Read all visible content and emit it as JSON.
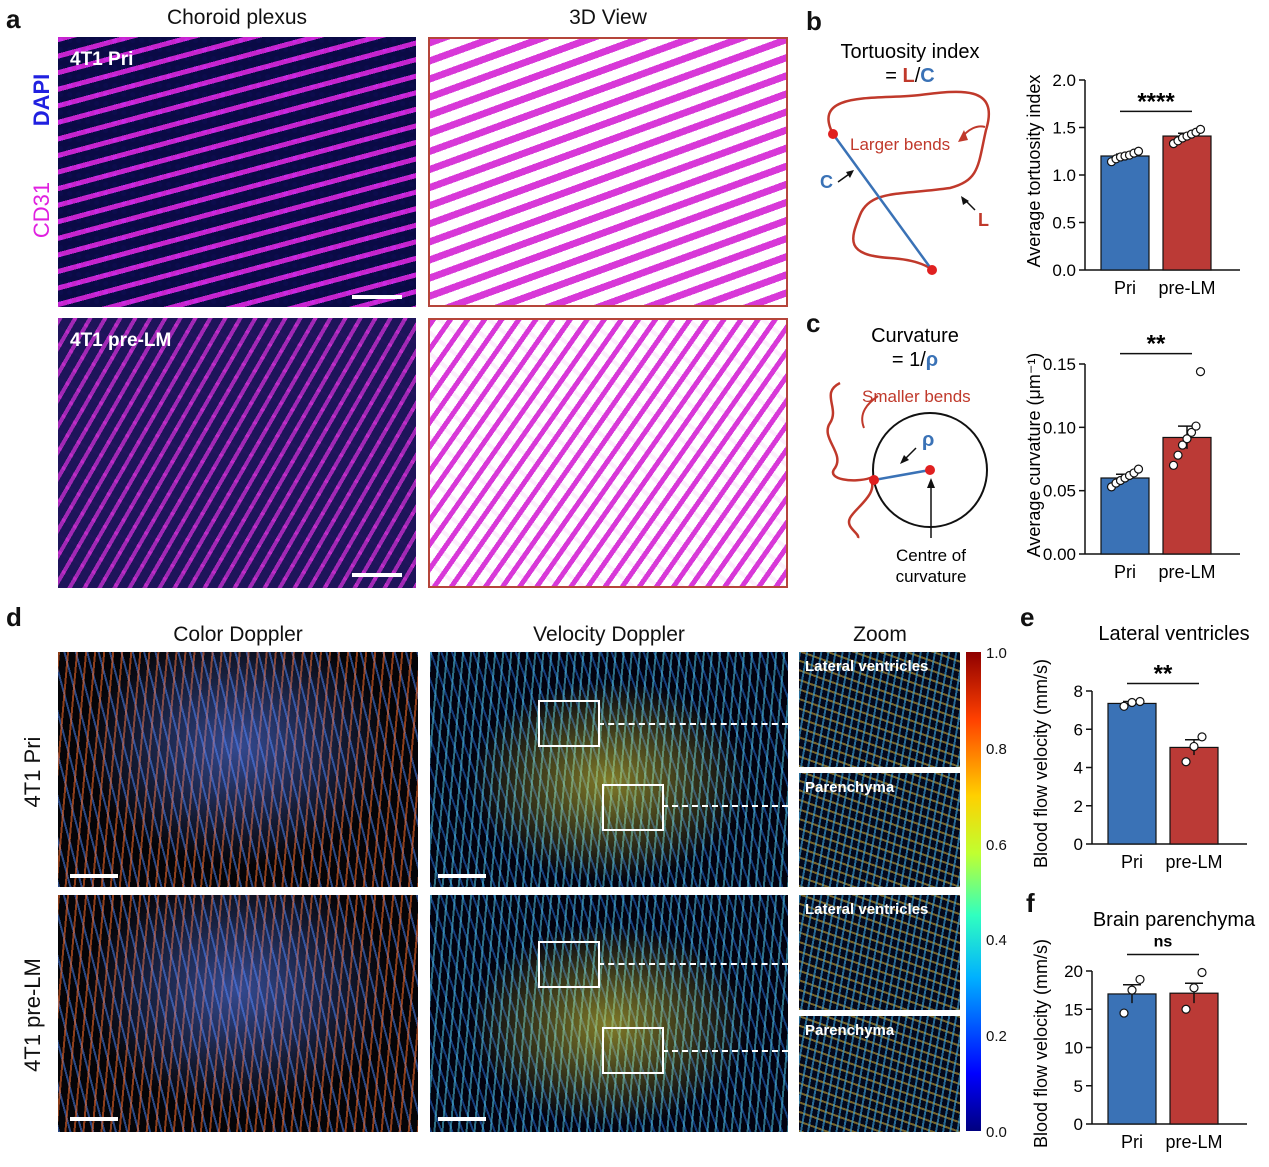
{
  "panels": {
    "a": {
      "letter": "a",
      "col_titles": [
        "Choroid plexus",
        "3D View"
      ],
      "stain_labels": [
        "DAPI",
        "CD31"
      ],
      "row_labels": [
        "4T1 Pri",
        "4T1 pre-LM"
      ]
    },
    "b": {
      "letter": "b",
      "formula_line1": "Tortuosity index",
      "formula_eq": "= ",
      "formula_L": "L",
      "formula_slash": "/",
      "formula_C": "C",
      "bend_label": "Larger bends",
      "label_C": "C",
      "label_L": "L"
    },
    "c": {
      "letter": "c",
      "formula_line1": "Curvature",
      "formula_eq": "= 1/",
      "formula_rho": "ρ",
      "bend_label": "Smaller bends",
      "rho_label": "ρ",
      "centre_label_1": "Centre of",
      "centre_label_2": "curvature"
    },
    "d": {
      "letter": "d",
      "col_titles": [
        "Color Doppler",
        "Velocity Doppler",
        "Zoom"
      ],
      "row_labels": [
        "4T1 Pri",
        "4T1 pre-LM"
      ],
      "zoom_labels": [
        "Lateral ventricles",
        "Parenchyma",
        "Lateral ventricles",
        "Parenchyma"
      ],
      "colorbar_ticks": [
        "1.0",
        "0.8",
        "0.6",
        "0.4",
        "0.2",
        "0.0"
      ]
    },
    "e": {
      "letter": "e"
    },
    "f": {
      "letter": "f"
    }
  },
  "chart_data": [
    {
      "id": "b",
      "type": "bar",
      "title": "",
      "categories": [
        "Pri",
        "pre-LM"
      ],
      "values": [
        1.2,
        1.41
      ],
      "errors": [
        0.02,
        0.03
      ],
      "points": [
        [
          1.14,
          1.17,
          1.19,
          1.2,
          1.21,
          1.23,
          1.25
        ],
        [
          1.33,
          1.36,
          1.39,
          1.41,
          1.43,
          1.45,
          1.48
        ]
      ],
      "ylabel": "Average tortuosity index",
      "ylim": [
        0,
        2.0
      ],
      "yticks": [
        "0.0",
        "0.5",
        "1.0",
        "1.5",
        "2.0"
      ],
      "significance": "****",
      "colors": [
        "#3a72b6",
        "#bb3a36"
      ]
    },
    {
      "id": "c",
      "type": "bar",
      "title": "",
      "categories": [
        "Pri",
        "pre-LM"
      ],
      "values": [
        0.06,
        0.092
      ],
      "errors": [
        0.003,
        0.009
      ],
      "points": [
        [
          0.053,
          0.056,
          0.058,
          0.06,
          0.062,
          0.064,
          0.067
        ],
        [
          0.07,
          0.078,
          0.086,
          0.091,
          0.096,
          0.101,
          0.144
        ]
      ],
      "ylabel": "Average curvature (μm⁻¹)",
      "ylim": [
        0,
        0.15
      ],
      "yticks": [
        "0.00",
        "0.05",
        "0.10",
        "0.15"
      ],
      "significance": "**",
      "colors": [
        "#3a72b6",
        "#bb3a36"
      ]
    },
    {
      "id": "e",
      "type": "bar",
      "title": "Lateral ventricles",
      "categories": [
        "Pri",
        "pre-LM"
      ],
      "values": [
        7.35,
        5.05
      ],
      "errors": [
        0.1,
        0.4
      ],
      "points": [
        [
          7.2,
          7.4,
          7.45
        ],
        [
          4.3,
          5.1,
          5.6
        ]
      ],
      "ylabel": "Blood flow velocity (mm/s)",
      "ylim": [
        0,
        8
      ],
      "yticks": [
        "0",
        "2",
        "4",
        "6",
        "8"
      ],
      "significance": "**",
      "colors": [
        "#3a72b6",
        "#bb3a36"
      ]
    },
    {
      "id": "f",
      "type": "bar",
      "title": "Brain parenchyma",
      "categories": [
        "Pri",
        "pre-LM"
      ],
      "values": [
        17.0,
        17.1
      ],
      "errors": [
        1.2,
        1.3
      ],
      "points": [
        [
          14.5,
          17.5,
          18.9
        ],
        [
          15.0,
          17.8,
          19.8
        ]
      ],
      "ylabel": "Blood flow velocity (mm/s)",
      "ylim": [
        0,
        20
      ],
      "yticks": [
        "0",
        "5",
        "10",
        "15",
        "20"
      ],
      "significance": "ns",
      "colors": [
        "#3a72b6",
        "#bb3a36"
      ]
    }
  ]
}
